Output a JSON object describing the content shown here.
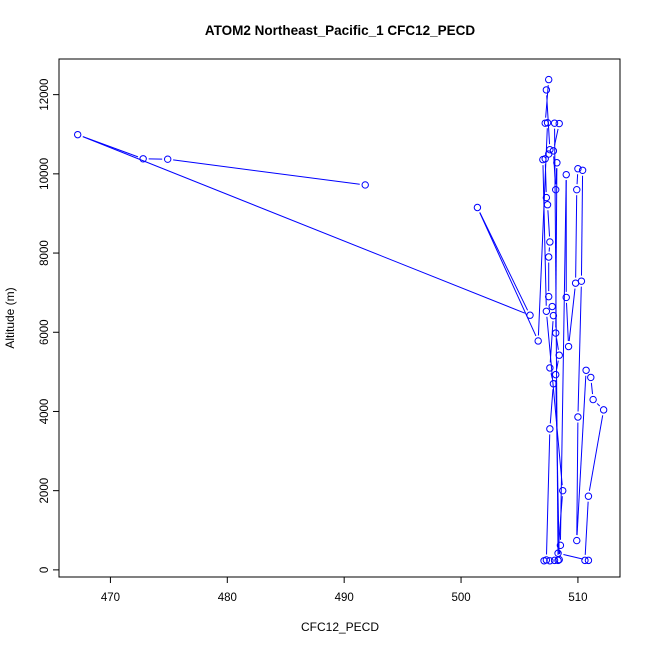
{
  "chart_data": {
    "type": "scatter",
    "title": "ATOM2 Northeast_Pacific_1 CFC12_PECD",
    "xlabel": "CFC12_PECD",
    "ylabel": "Altitude (m)",
    "xlim": [
      465.6,
      513.6
    ],
    "ylim": [
      -180,
      12900
    ],
    "xticks": [
      470,
      480,
      490,
      500,
      510
    ],
    "yticks": [
      0,
      2000,
      4000,
      6000,
      8000,
      10000,
      12000
    ],
    "color": "#0000ff",
    "markers": "open circles connected by lines",
    "grid": false,
    "series": [
      {
        "points": [
          [
            491.8,
            9720
          ],
          [
            474.9,
            10370
          ],
          [
            472.8,
            10380
          ],
          [
            467.2,
            10990
          ],
          [
            505.9,
            6430
          ],
          [
            501.4,
            9150
          ],
          [
            506.6,
            5780
          ],
          [
            507.4,
            11290
          ],
          [
            507.2,
            11280
          ],
          [
            507.5,
            12380
          ],
          [
            507.3,
            12120
          ],
          [
            507.6,
            10610
          ],
          [
            507.5,
            10500
          ],
          [
            507.2,
            10380
          ],
          [
            507.3,
            9400
          ],
          [
            507.4,
            9220
          ],
          [
            507.6,
            8280
          ],
          [
            507.5,
            7900
          ],
          [
            507.5,
            6900
          ],
          [
            507.8,
            6650
          ],
          [
            507.9,
            6420
          ],
          [
            507.6,
            5100
          ],
          [
            507.9,
            4700
          ],
          [
            507.6,
            3560
          ],
          [
            507.3,
            250
          ],
          [
            507.1,
            230
          ],
          [
            507.6,
            230
          ],
          [
            508.0,
            240
          ],
          [
            508.3,
            240
          ],
          [
            508.0,
            11280
          ],
          [
            508.4,
            11270
          ],
          [
            507.9,
            10580
          ],
          [
            508.1,
            9600
          ],
          [
            508.2,
            10280
          ],
          [
            508.1,
            5980
          ],
          [
            508.4,
            5420
          ],
          [
            508.1,
            4930
          ],
          [
            508.4,
            260
          ],
          [
            508.5,
            620
          ],
          [
            509.0,
            9980
          ],
          [
            509.0,
            6880
          ],
          [
            509.2,
            5640
          ],
          [
            509.8,
            7240
          ],
          [
            509.9,
            9600
          ],
          [
            510.0,
            10130
          ],
          [
            510.4,
            10090
          ],
          [
            510.3,
            7290
          ],
          [
            510.0,
            3860
          ],
          [
            509.9,
            740
          ],
          [
            510.7,
            5040
          ],
          [
            511.1,
            4860
          ],
          [
            511.3,
            4300
          ],
          [
            512.2,
            4040
          ],
          [
            510.9,
            1860
          ],
          [
            510.6,
            240
          ],
          [
            510.9,
            240
          ],
          [
            508.3,
            420
          ],
          [
            508.7,
            2000
          ],
          [
            507.3,
            6530
          ],
          [
            507.0,
            10360
          ]
        ]
      }
    ]
  }
}
